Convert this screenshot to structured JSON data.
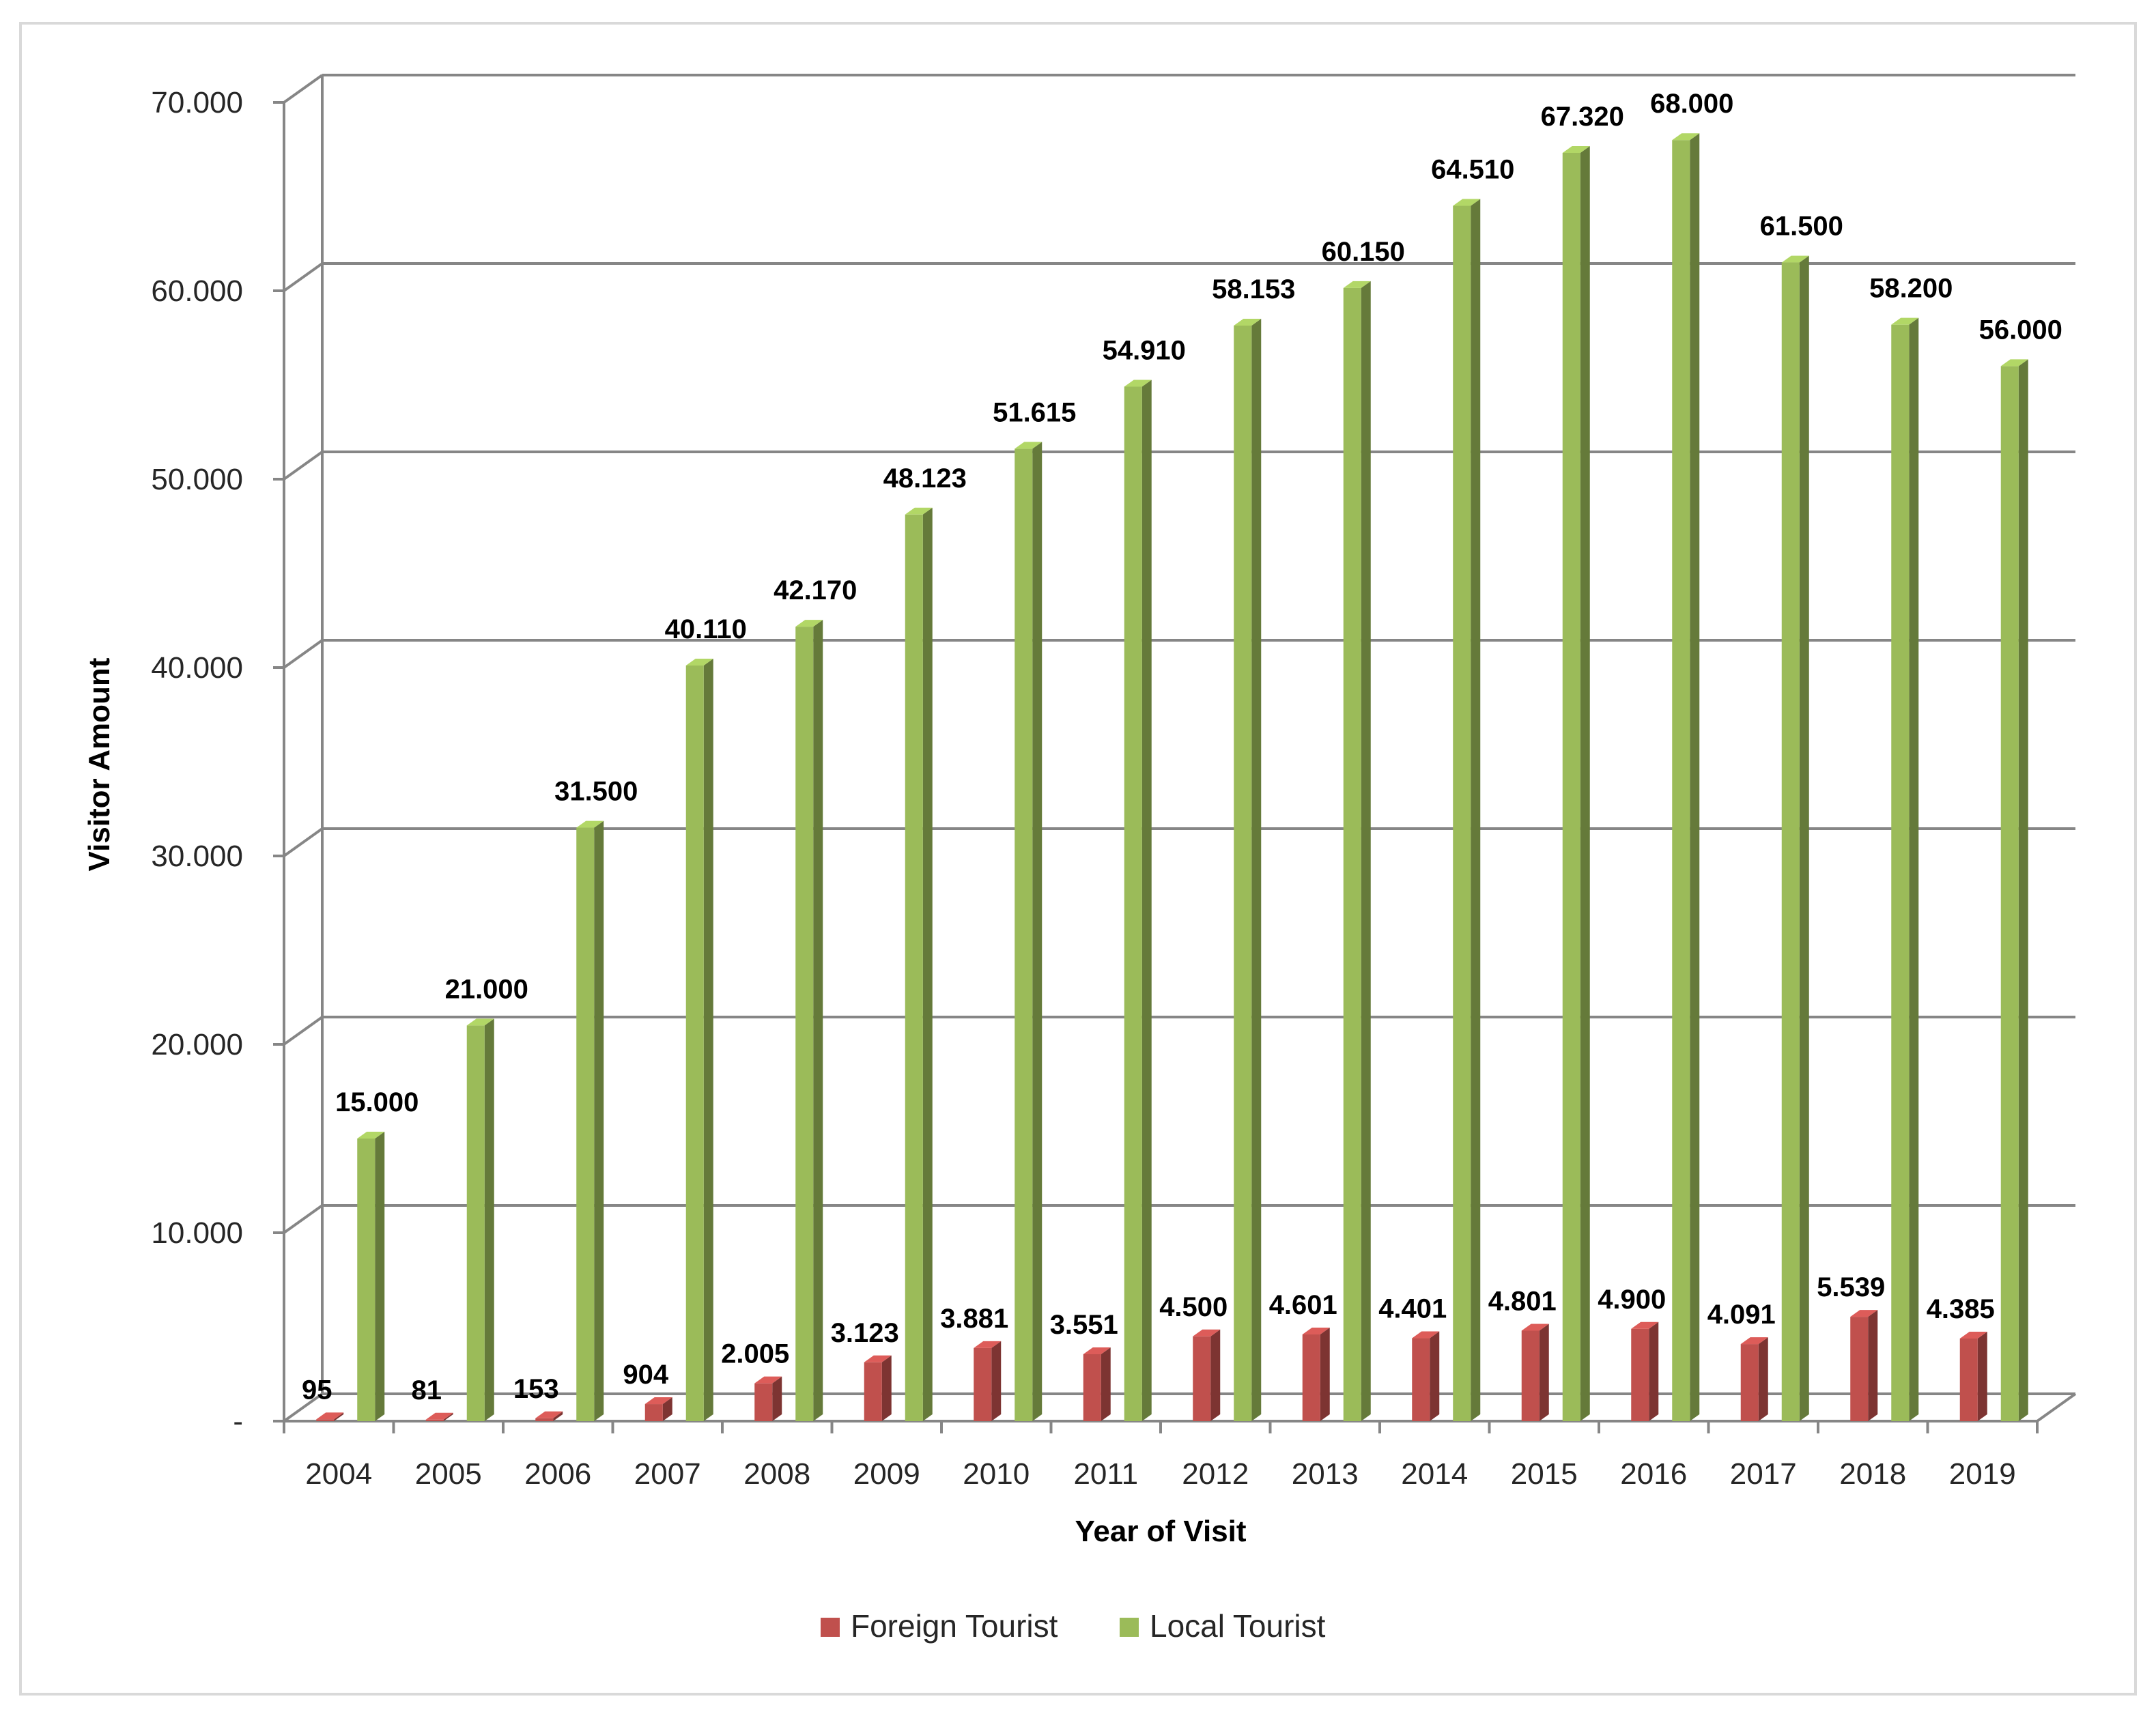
{
  "chart_data": {
    "type": "bar",
    "title": "",
    "xlabel": "Year of Visit",
    "ylabel": "Visitor Amount",
    "ylim": [
      0,
      70000
    ],
    "y_ticks": [
      0,
      10000,
      20000,
      30000,
      40000,
      50000,
      60000,
      70000
    ],
    "y_tick_labels": [
      "-",
      "10.000",
      "20.000",
      "30.000",
      "40.000",
      "50.000",
      "60.000",
      "70.000"
    ],
    "grid": true,
    "legend_position": "bottom",
    "categories": [
      "2004",
      "2005",
      "2006",
      "2007",
      "2008",
      "2009",
      "2010",
      "2011",
      "2012",
      "2013",
      "2014",
      "2015",
      "2016",
      "2017",
      "2018",
      "2019"
    ],
    "series": [
      {
        "name": "Foreign Tourist",
        "color": "#c0504d",
        "values": [
          95,
          81,
          153,
          904,
          2005,
          3123,
          3881,
          3551,
          4500,
          4601,
          4401,
          4801,
          4900,
          4091,
          5539,
          4385
        ],
        "labels": [
          "95",
          "81",
          "153",
          "904",
          "2.005",
          "3.123",
          "3.881",
          "3.551",
          "4.500",
          "4.601",
          "4.401",
          "4.801",
          "4.900",
          "4.091",
          "5.539",
          "4.385"
        ]
      },
      {
        "name": "Local Tourist",
        "color": "#9bbb59",
        "values": [
          15000,
          21000,
          31500,
          40110,
          42170,
          48123,
          51615,
          54910,
          58153,
          60150,
          64510,
          67320,
          68000,
          61500,
          58200,
          56000
        ],
        "labels": [
          "15.000",
          "21.000",
          "31.500",
          "40.110",
          "42.170",
          "48.123",
          "51.615",
          "54.910",
          "58.153",
          "60.150",
          "64.510",
          "67.320",
          "68.000",
          "61.500",
          "58.200",
          "56.000"
        ]
      }
    ]
  }
}
